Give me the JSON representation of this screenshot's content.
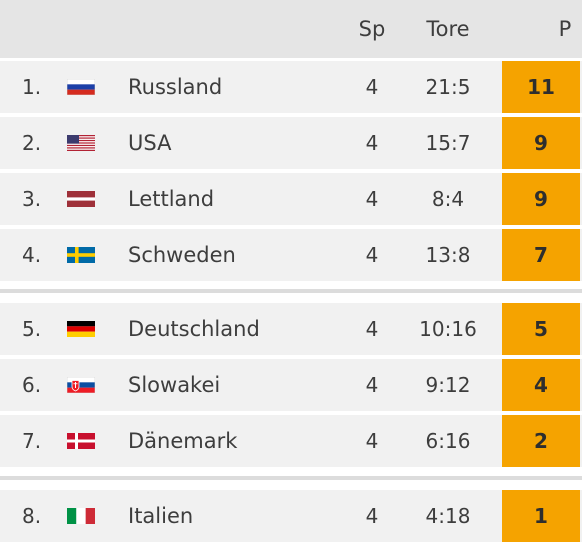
{
  "header": {
    "sp": "Sp",
    "tore": "Tore",
    "p": "P"
  },
  "colors": {
    "points_bg": "#f5a300",
    "row_bg": "#f1f1f1",
    "header_bg": "#e5e5e5"
  },
  "rows": [
    {
      "rank": "1.",
      "flag": "russia-flag-icon",
      "team": "Russland",
      "sp": "4",
      "tore": "21:5",
      "p": "11"
    },
    {
      "rank": "2.",
      "flag": "usa-flag-icon",
      "team": "USA",
      "sp": "4",
      "tore": "15:7",
      "p": "9"
    },
    {
      "rank": "3.",
      "flag": "latvia-flag-icon",
      "team": "Lettland",
      "sp": "4",
      "tore": "8:4",
      "p": "9"
    },
    {
      "rank": "4.",
      "flag": "sweden-flag-icon",
      "team": "Schweden",
      "sp": "4",
      "tore": "13:8",
      "p": "7"
    },
    {
      "rank": "5.",
      "flag": "germany-flag-icon",
      "team": "Deutschland",
      "sp": "4",
      "tore": "10:16",
      "p": "5"
    },
    {
      "rank": "6.",
      "flag": "slovakia-flag-icon",
      "team": "Slowakei",
      "sp": "4",
      "tore": "9:12",
      "p": "4"
    },
    {
      "rank": "7.",
      "flag": "denmark-flag-icon",
      "team": "Dänemark",
      "sp": "4",
      "tore": "6:16",
      "p": "2"
    },
    {
      "rank": "8.",
      "flag": "italy-flag-icon",
      "team": "Italien",
      "sp": "4",
      "tore": "4:18",
      "p": "1"
    }
  ]
}
